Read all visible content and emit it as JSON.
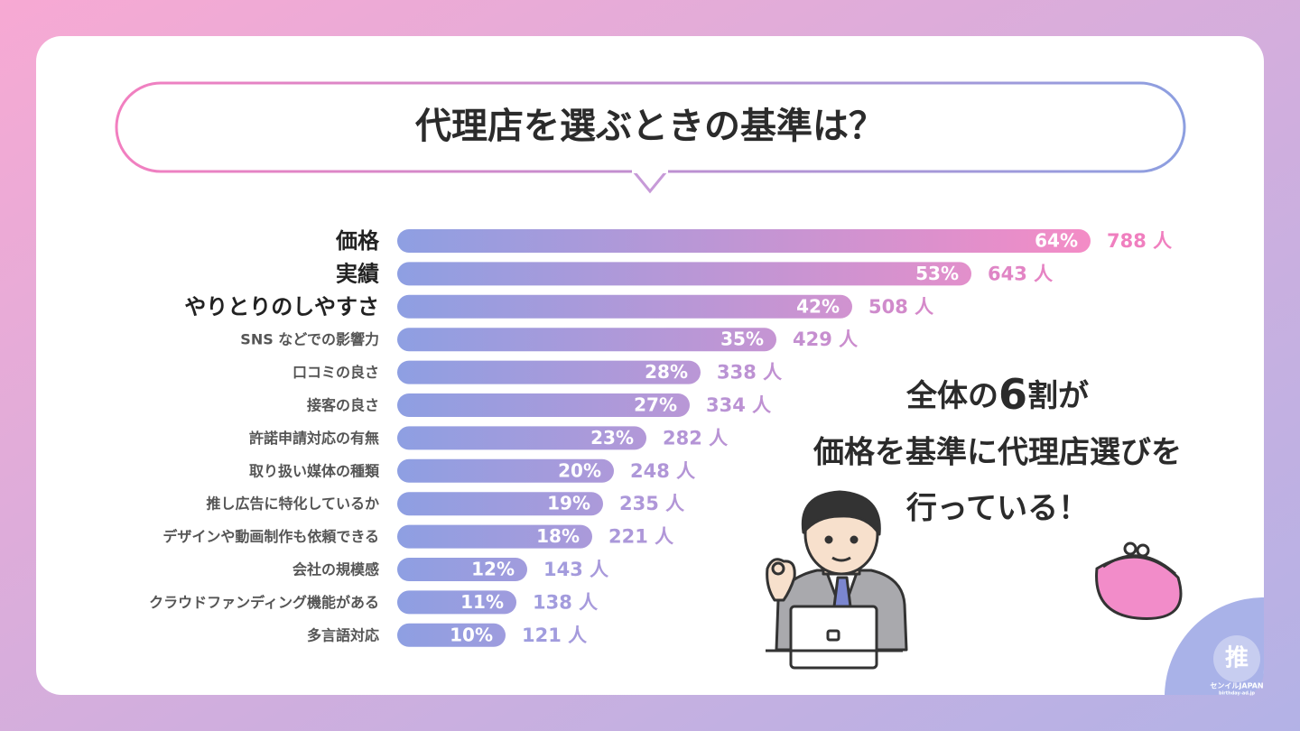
{
  "chart_data": {
    "type": "bar",
    "orientation": "horizontal",
    "title": "代理店を選ぶときの基準は？",
    "categories": [
      "価格",
      "実績",
      "やりとりのしやすさ",
      "SNS などでの影響力",
      "口コミの良さ",
      "接客の良さ",
      "許諾申請対応の有無",
      "取り扱い媒体の種類",
      "推し広告に特化しているか",
      "デザインや動画制作も依頼できる",
      "会社の規模感",
      "クラウドファンディング機能がある",
      "多言語対応"
    ],
    "values": [
      64,
      53,
      42,
      35,
      28,
      27,
      23,
      20,
      19,
      18,
      12,
      11,
      10
    ],
    "value_labels": [
      "64%",
      "53%",
      "42%",
      "35%",
      "28%",
      "27%",
      "23%",
      "20%",
      "19%",
      "18%",
      "12%",
      "11%",
      "10%"
    ],
    "counts": [
      788,
      643,
      508,
      429,
      338,
      334,
      282,
      248,
      235,
      221,
      143,
      138,
      121
    ],
    "count_labels": [
      "788 人",
      "643 人",
      "508 人",
      "429 人",
      "338 人",
      "334 人",
      "282 人",
      "248 人",
      "235 人",
      "221 人",
      "143 人",
      "138 人",
      "121 人"
    ],
    "color_start": "#8e9fe2",
    "color_end": "#f48cc6",
    "annotation": {
      "line1": [
        "全体の",
        "6",
        "割が"
      ],
      "line2": "価格を基準に代理店選びを",
      "line3": "行っている！"
    },
    "logo": {
      "name": "センイルJAPAN",
      "url": "birthday-ad.jp"
    }
  }
}
